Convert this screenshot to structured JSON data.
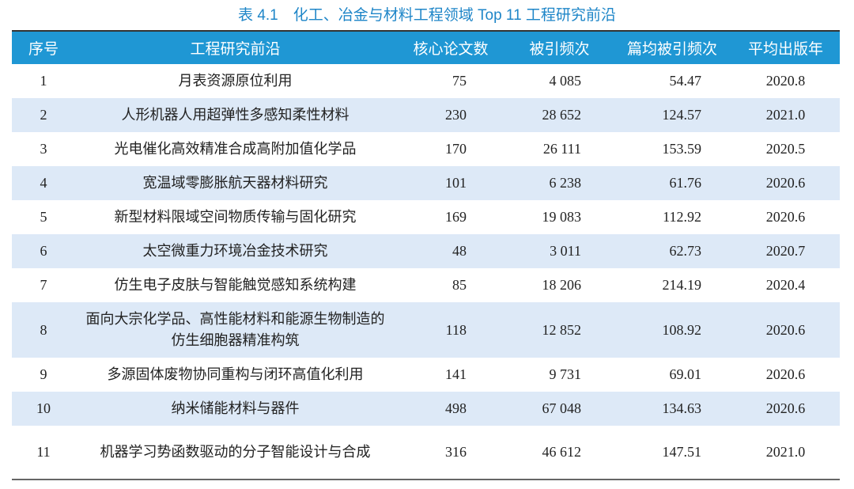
{
  "title": "表 4.1　化工、冶金与材料工程领域 Top 11 工程研究前沿",
  "headers": [
    "序号",
    "工程研究前沿",
    "核心论文数",
    "被引频次",
    "篇均被引频次",
    "平均出版年"
  ],
  "rows": [
    {
      "no": "1",
      "topic": "月表资源原位利用",
      "papers": "75",
      "citations": "4 085",
      "avg": "54.47",
      "year": "2020.8"
    },
    {
      "no": "2",
      "topic": "人形机器人用超弹性多感知柔性材料",
      "papers": "230",
      "citations": "28 652",
      "avg": "124.57",
      "year": "2021.0"
    },
    {
      "no": "3",
      "topic": "光电催化高效精准合成高附加值化学品",
      "papers": "170",
      "citations": "26 111",
      "avg": "153.59",
      "year": "2020.5"
    },
    {
      "no": "4",
      "topic": "宽温域零膨胀航天器材料研究",
      "papers": "101",
      "citations": "6 238",
      "avg": "61.76",
      "year": "2020.6"
    },
    {
      "no": "5",
      "topic": "新型材料限域空间物质传输与固化研究",
      "papers": "169",
      "citations": "19 083",
      "avg": "112.92",
      "year": "2020.6"
    },
    {
      "no": "6",
      "topic": "太空微重力环境冶金技术研究",
      "papers": "48",
      "citations": "3 011",
      "avg": "62.73",
      "year": "2020.7"
    },
    {
      "no": "7",
      "topic": "仿生电子皮肤与智能触觉感知系统构建",
      "papers": "85",
      "citations": "18 206",
      "avg": "214.19",
      "year": "2020.4"
    },
    {
      "no": "8",
      "topic": "面向大宗化学品、高性能材料和能源生物制造的仿生细胞器精准构筑",
      "papers": "118",
      "citations": "12 852",
      "avg": "108.92",
      "year": "2020.6"
    },
    {
      "no": "9",
      "topic": "多源固体废物协同重构与闭环高值化利用",
      "papers": "141",
      "citations": "9 731",
      "avg": "69.01",
      "year": "2020.6"
    },
    {
      "no": "10",
      "topic": "纳米储能材料与器件",
      "papers": "498",
      "citations": "67 048",
      "avg": "134.63",
      "year": "2020.6"
    },
    {
      "no": "11",
      "topic": "机器学习势函数驱动的分子智能设计与合成",
      "papers": "316",
      "citations": "46 612",
      "avg": "147.51",
      "year": "2021.0"
    }
  ],
  "colors": {
    "header_bg": "#1f97d4",
    "stripe_bg": "#dde9f7",
    "title": "#1f86c8"
  }
}
